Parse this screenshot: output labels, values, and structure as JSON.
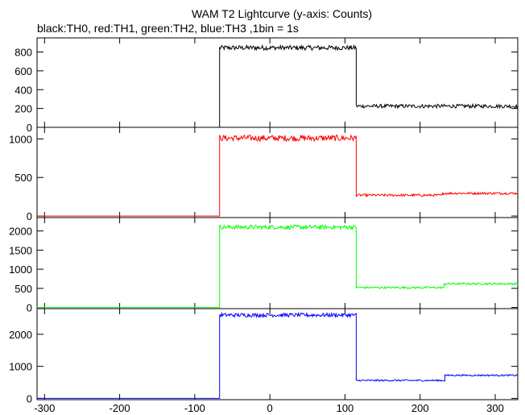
{
  "chart_data": {
    "type": "line",
    "title": "WAM T2 Lightcurve (y-axis: Counts)",
    "subtitle": "black:TH0, red:TH1, green:TH2, blue:TH3 ,1bin = 1s",
    "xlim": [
      -310,
      330
    ],
    "x_ticks": [
      -300,
      -200,
      -100,
      0,
      100,
      200,
      300
    ],
    "grid": false,
    "panels": [
      {
        "name": "TH0",
        "color": "#000000",
        "ylim": [
          0,
          950
        ],
        "y_ticks": [
          0,
          200,
          400,
          600,
          800
        ],
        "segments": [
          {
            "x_start": -310,
            "x_end": -67,
            "level": 0
          },
          {
            "x_start": -67,
            "x_end": 115,
            "level": 845,
            "amplitude": 25
          },
          {
            "x_start": 115,
            "x_end": 330,
            "level": 225,
            "amplitude": 20
          }
        ]
      },
      {
        "name": "TH1",
        "color": "#ff0000",
        "ylim": [
          -20,
          1150
        ],
        "y_ticks": [
          0,
          500,
          1000
        ],
        "segments": [
          {
            "x_start": -310,
            "x_end": -67,
            "level": 0
          },
          {
            "x_start": -67,
            "x_end": 115,
            "level": 1010,
            "amplitude": 40
          },
          {
            "x_start": 115,
            "x_end": 230,
            "level": 270,
            "amplitude": 15
          },
          {
            "x_start": 230,
            "x_end": 330,
            "level": 295,
            "amplitude": 15
          }
        ]
      },
      {
        "name": "TH2",
        "color": "#00ff00",
        "ylim": [
          -30,
          2350
        ],
        "y_ticks": [
          0,
          500,
          1000,
          1500,
          2000
        ],
        "segments": [
          {
            "x_start": -310,
            "x_end": -67,
            "level": 0
          },
          {
            "x_start": -67,
            "x_end": 115,
            "level": 2100,
            "amplitude": 55
          },
          {
            "x_start": 115,
            "x_end": 232,
            "level": 520,
            "amplitude": 25
          },
          {
            "x_start": 232,
            "x_end": 330,
            "level": 620,
            "amplitude": 25
          }
        ]
      },
      {
        "name": "TH3",
        "color": "#0000ff",
        "ylim": [
          -40,
          2800
        ],
        "y_ticks": [
          0,
          1000,
          2000
        ],
        "segments": [
          {
            "x_start": -310,
            "x_end": -67,
            "level": 0
          },
          {
            "x_start": -67,
            "x_end": 115,
            "level": 2600,
            "amplitude": 60
          },
          {
            "x_start": 115,
            "x_end": 233,
            "level": 560,
            "amplitude": 25
          },
          {
            "x_start": 233,
            "x_end": 330,
            "level": 720,
            "amplitude": 25
          }
        ]
      }
    ]
  }
}
